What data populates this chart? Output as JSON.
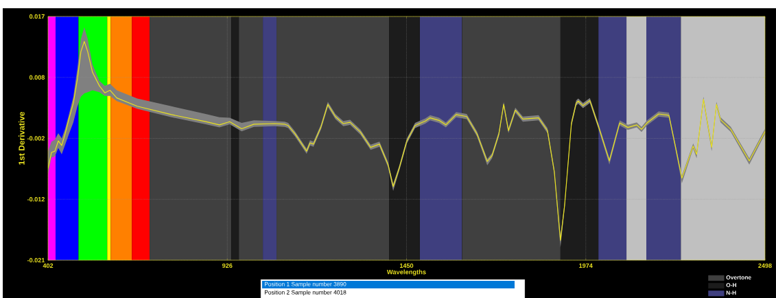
{
  "chart_data": {
    "type": "line",
    "xlabel": "Wavelengths",
    "ylabel": "1st Derivative",
    "xlim": [
      402,
      2498
    ],
    "ylim": [
      -0.021,
      0.017
    ],
    "xticks": [
      402,
      926,
      1450,
      1974,
      2498
    ],
    "yticks": [
      -0.021,
      {
        "value": -0.0115,
        "label": "-0.012"
      },
      {
        "value": -0.002,
        "label": "-0.002"
      },
      {
        "value": 0.0075,
        "label": "0.008"
      },
      0.017
    ],
    "grid": true,
    "legend": "bottom right",
    "bands": [
      {
        "axis": "x",
        "from": 402,
        "to": 424,
        "color": "#ff00ff"
      },
      {
        "axis": "x",
        "from": 424,
        "to": 491,
        "color": "#0000ff"
      },
      {
        "axis": "x",
        "from": 491,
        "to": 575,
        "color": "#00ff00"
      },
      {
        "axis": "x",
        "from": 575,
        "to": 585,
        "color": "#ffff00"
      },
      {
        "axis": "x",
        "from": 585,
        "to": 647,
        "color": "#ff8000"
      },
      {
        "axis": "x",
        "from": 647,
        "to": 699,
        "color": "#ff0000"
      },
      {
        "axis": "x",
        "from": 699,
        "to": 938,
        "color": "#404040",
        "label": "Overtone"
      },
      {
        "axis": "x",
        "from": 938,
        "to": 960,
        "color": "#1c1c1c",
        "label": "O-H"
      },
      {
        "axis": "x",
        "from": 960,
        "to": 1030,
        "color": "#404040"
      },
      {
        "axis": "x",
        "from": 1030,
        "to": 1070,
        "color": "#3f3f7f",
        "label": "N-H"
      },
      {
        "axis": "x",
        "from": 1070,
        "to": 1399,
        "color": "#404040"
      },
      {
        "axis": "x",
        "from": 1399,
        "to": 1489,
        "color": "#1c1c1c"
      },
      {
        "axis": "x",
        "from": 1489,
        "to": 1612,
        "color": "#3f3f7f"
      },
      {
        "axis": "x",
        "from": 1612,
        "to": 1900,
        "color": "#404040"
      },
      {
        "axis": "x",
        "from": 1900,
        "to": 2011,
        "color": "#1c1c1c"
      },
      {
        "axis": "x",
        "from": 2011,
        "to": 2093,
        "color": "#3f3f7f"
      },
      {
        "axis": "x",
        "from": 2093,
        "to": 2151,
        "color": "#c0c0c0"
      },
      {
        "axis": "x",
        "from": 2151,
        "to": 2252,
        "color": "#3f3f7f"
      },
      {
        "axis": "x",
        "from": 2252,
        "to": 2498,
        "color": "#c0c0c0"
      }
    ],
    "annotations": [
      "Position 1  Sample number 3890",
      "Position 2  Sample number 4018"
    ],
    "series": [
      {
        "color": "#e8e020",
        "x": [
          402,
          412,
          422,
          432,
          442,
          452,
          462,
          476,
          488,
          498,
          508,
          518,
          532,
          552,
          568,
          583,
          603,
          663,
          763,
          863,
          903,
          933,
          968,
          1004,
          1064,
          1094,
          1104,
          1124,
          1158,
          1168,
          1178,
          1200,
          1220,
          1242,
          1265,
          1285,
          1315,
          1345,
          1371,
          1396,
          1411,
          1429,
          1451,
          1475,
          1505,
          1519,
          1545,
          1565,
          1595,
          1626,
          1656,
          1686,
          1700,
          1720,
          1734,
          1748,
          1768,
          1790,
          1836,
          1862,
          1882,
          1900,
          1912,
          1932,
          1946,
          1952,
          1966,
          1986,
          2011,
          2043,
          2073,
          2097,
          2123,
          2137,
          2153,
          2187,
          2217,
          2233,
          2255,
          2288,
          2298,
          2318,
          2342,
          2356,
          2368,
          2398,
          2452,
          2498
        ],
        "values": [
          -0.0067,
          -0.0042,
          -0.004,
          -0.0024,
          -0.0031,
          -0.0013,
          0.0008,
          0.0035,
          0.0073,
          0.0115,
          0.0131,
          0.0115,
          0.0083,
          0.0062,
          0.0051,
          0.0055,
          0.0043,
          0.003,
          0.0017,
          0.0006,
          0.0001,
          0.0006,
          -0.0005,
          0.0002,
          0.0003,
          0.0002,
          0.0,
          -0.0013,
          -0.004,
          -0.0027,
          -0.0029,
          -0.0002,
          0.0033,
          0.0014,
          0.0003,
          0.0005,
          -0.001,
          -0.0034,
          -0.0029,
          -0.0061,
          -0.0095,
          -0.0066,
          -0.0024,
          0.0,
          0.0007,
          0.0012,
          0.0008,
          0.0001,
          0.0017,
          0.0014,
          -0.0013,
          -0.0056,
          -0.0047,
          -0.0013,
          0.0033,
          -0.0008,
          0.0024,
          0.001,
          0.0012,
          -0.0008,
          -0.0072,
          -0.0179,
          -0.0125,
          0.0003,
          0.0035,
          0.0038,
          0.0031,
          0.0039,
          -0.0001,
          -0.0055,
          0.0004,
          -0.0003,
          0.0001,
          -0.0006,
          0.0004,
          0.0018,
          0.0016,
          -0.0025,
          -0.0082,
          -0.0032,
          -0.0045,
          0.0041,
          -0.0034,
          0.0033,
          0.0009,
          -0.0006,
          -0.0055,
          -0.0009
        ],
        "upper": [
          -0.004,
          -0.0025,
          -0.0022,
          -0.0012,
          -0.002,
          -0.0005,
          0.0015,
          0.0045,
          0.009,
          0.0135,
          0.0153,
          0.0135,
          0.0095,
          0.007,
          0.0062,
          0.0065,
          0.0055,
          0.0042,
          0.003,
          0.0018,
          0.0013,
          0.0012,
          0.0004,
          0.0008,
          0.0007,
          0.0006,
          0.0004,
          -0.0009,
          -0.0036,
          -0.0023,
          -0.0025,
          0.0002,
          0.0037,
          0.0018,
          0.0007,
          0.0009,
          -0.0006,
          -0.003,
          -0.0025,
          -0.0057,
          -0.0091,
          -0.0062,
          -0.002,
          0.0004,
          0.0011,
          0.0016,
          0.0012,
          0.0005,
          0.0021,
          0.0018,
          -0.0009,
          -0.0052,
          -0.0043,
          -0.0009,
          0.0037,
          -0.0004,
          0.0028,
          0.0014,
          0.0016,
          -0.0004,
          -0.0068,
          -0.0172,
          -0.0121,
          0.0007,
          0.0039,
          0.0042,
          0.0035,
          0.0043,
          0.0003,
          -0.0051,
          0.0008,
          0.0001,
          0.0005,
          -0.0002,
          0.0008,
          0.0022,
          0.002,
          -0.0021,
          -0.0078,
          -0.0028,
          -0.0041,
          0.0045,
          -0.003,
          0.0037,
          0.0013,
          -0.0002,
          -0.0051,
          -0.0005
        ],
        "lower": [
          -0.0075,
          -0.005,
          -0.0048,
          -0.0035,
          -0.0045,
          -0.003,
          -0.0015,
          0.0005,
          0.003,
          0.0045,
          0.005,
          0.0052,
          0.0055,
          0.0052,
          0.0046,
          0.0046,
          0.0038,
          0.0026,
          0.0013,
          0.0002,
          -0.0003,
          0.0002,
          -0.0009,
          -0.0002,
          -0.0001,
          -0.0002,
          -0.0004,
          -0.0017,
          -0.0044,
          -0.0031,
          -0.0033,
          -0.0006,
          0.0029,
          0.001,
          -0.0001,
          0.0001,
          -0.0014,
          -0.0038,
          -0.0033,
          -0.0065,
          -0.0102,
          -0.007,
          -0.0028,
          -0.0004,
          0.0003,
          0.0008,
          0.0004,
          -0.0003,
          0.0013,
          0.001,
          -0.0017,
          -0.0062,
          -0.0051,
          -0.0017,
          0.0029,
          -0.0012,
          0.002,
          0.0006,
          0.0008,
          -0.0012,
          -0.0076,
          -0.019,
          -0.0129,
          -0.0001,
          0.0031,
          0.0034,
          0.0027,
          0.0035,
          -0.0005,
          -0.0061,
          0.0,
          -0.0007,
          -0.0003,
          -0.001,
          0.0,
          0.0014,
          0.0012,
          -0.0029,
          -0.009,
          -0.0036,
          -0.0051,
          0.0037,
          -0.004,
          0.0029,
          0.0005,
          -0.001,
          -0.0061,
          -0.0013
        ]
      }
    ]
  }
}
